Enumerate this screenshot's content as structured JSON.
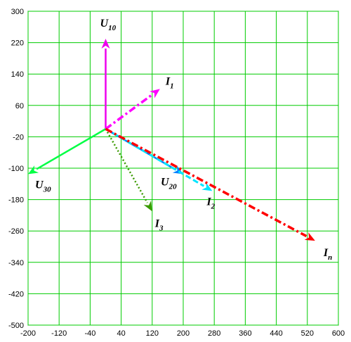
{
  "chart_data": {
    "type": "vector",
    "title": "",
    "xlabel": "",
    "ylabel": "",
    "xlim": [
      -200,
      600
    ],
    "ylim": [
      -500,
      300
    ],
    "x_ticks": [
      -200,
      -120,
      -40,
      40,
      120,
      200,
      280,
      360,
      440,
      520,
      600
    ],
    "y_ticks": [
      300,
      220,
      140,
      60,
      -20,
      -100,
      -180,
      -260,
      -340,
      -420,
      -500
    ],
    "x_tick_labels": [
      "-200",
      "-120",
      "-40",
      "40",
      "120",
      "200",
      "280",
      "360",
      "440",
      "520",
      "600"
    ],
    "y_tick_labels": [
      "300",
      "220",
      "140",
      "60",
      "-20",
      "-100",
      "-180",
      "-260",
      "-340",
      "-420",
      "-500"
    ],
    "grid": true,
    "grid_color": "#00cc00",
    "vectors": [
      {
        "id": "u10",
        "label_main": "U",
        "label_sub": "10",
        "x0": 0,
        "y0": 0,
        "x1": 0,
        "y1": 230,
        "color": "#ee00ee",
        "style": "solid"
      },
      {
        "id": "i1",
        "label_main": "I",
        "label_sub": "1",
        "x0": 0,
        "y0": 0,
        "x1": 140,
        "y1": 102,
        "color": "#ff00ff",
        "style": "dashdot"
      },
      {
        "id": "u30",
        "label_main": "U",
        "label_sub": "30",
        "x0": 0,
        "y0": 0,
        "x1": -200,
        "y1": -115,
        "color": "#00ff44",
        "style": "solid"
      },
      {
        "id": "u20",
        "label_main": "U",
        "label_sub": "20",
        "x0": 0,
        "y0": 0,
        "x1": 200,
        "y1": -115,
        "color": "#0080ff",
        "style": "solid"
      },
      {
        "id": "i2",
        "label_main": "I",
        "label_sub": "2",
        "x0": 0,
        "y0": 0,
        "x1": 275,
        "y1": -158,
        "color": "#00e5ff",
        "style": "dashed"
      },
      {
        "id": "i3",
        "label_main": "I",
        "label_sub": "3",
        "x0": 0,
        "y0": 0,
        "x1": 120,
        "y1": -210,
        "color": "#3a9a00",
        "style": "dotted"
      },
      {
        "id": "in",
        "label_main": "I",
        "label_sub": "n",
        "x0": 0,
        "y0": 0,
        "x1": 540,
        "y1": -285,
        "color": "#ff0000",
        "style": "dashdot"
      }
    ]
  }
}
